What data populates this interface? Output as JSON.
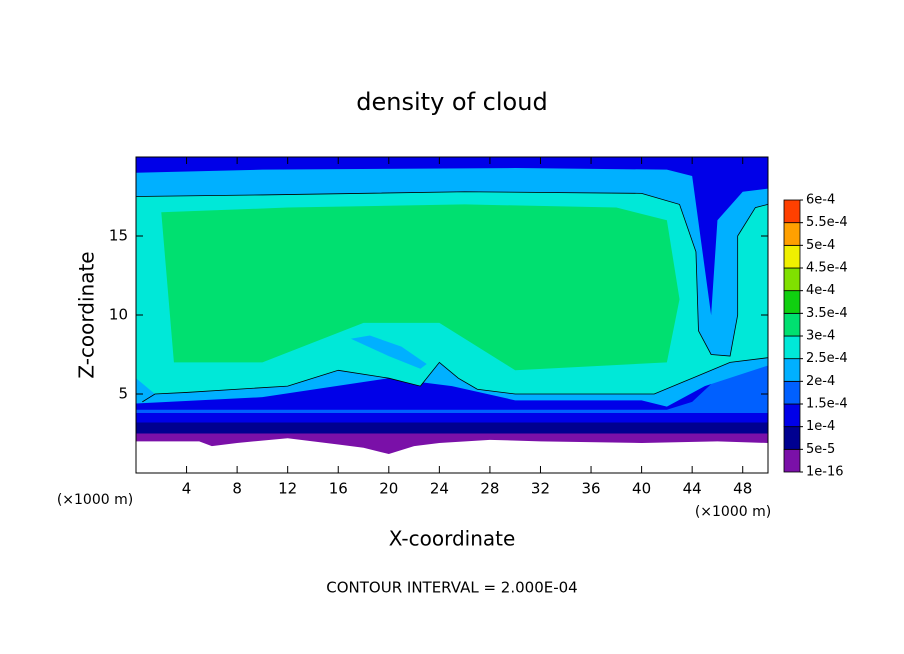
{
  "chart_data": {
    "type": "contour",
    "title": "density of cloud",
    "xlabel": "X-coordinate",
    "ylabel": "Z-coordinate",
    "xunit": "(×1000 m)",
    "yunit": "(×1000 m)",
    "footnote": "CONTOUR INTERVAL = 2.000E-04",
    "xlim": [
      0,
      50
    ],
    "ylim": [
      0,
      20
    ],
    "xticks": [
      4,
      8,
      12,
      16,
      20,
      24,
      28,
      32,
      36,
      40,
      44,
      48
    ],
    "yticks": [
      5,
      10,
      15
    ],
    "colorbar": {
      "levels": [
        {
          "value": 1e-16,
          "label": "1e-16"
        },
        {
          "value": 5e-05,
          "label": "5e-5"
        },
        {
          "value": 0.0001,
          "label": "1e-4"
        },
        {
          "value": 0.00015,
          "label": "1.5e-4"
        },
        {
          "value": 0.0002,
          "label": "2e-4"
        },
        {
          "value": 0.00025,
          "label": "2.5e-4"
        },
        {
          "value": 0.0003,
          "label": "3e-4"
        },
        {
          "value": 0.00035,
          "label": "3.5e-4"
        },
        {
          "value": 0.0004,
          "label": "4e-4"
        },
        {
          "value": 0.00045,
          "label": "4.5e-4"
        },
        {
          "value": 0.0005,
          "label": "5e-4"
        },
        {
          "value": 0.00055,
          "label": "5.5e-4"
        },
        {
          "value": 0.0006,
          "label": "6e-4"
        }
      ],
      "colors": [
        "#7a10a8",
        "#000090",
        "#0000e8",
        "#0060ff",
        "#00b0ff",
        "#00e8d8",
        "#00e070",
        "#10d010",
        "#80e000",
        "#f0f000",
        "#ffa000",
        "#ff4000",
        "#ff9090"
      ]
    },
    "field_regions": [
      {
        "color": "#7a10a8",
        "x": [
          0,
          5,
          6,
          8,
          12,
          16,
          18,
          20,
          22,
          24,
          28,
          32,
          40,
          46,
          50,
          50,
          0
        ],
        "z": [
          2.0,
          2.0,
          1.7,
          1.9,
          2.2,
          1.8,
          1.6,
          1.2,
          1.7,
          1.9,
          2.1,
          2.0,
          1.9,
          2.0,
          1.9,
          3.0,
          3.0
        ]
      },
      {
        "color": "#000090",
        "x": [
          0,
          50,
          50,
          0
        ],
        "z": [
          2.5,
          2.5,
          4.2,
          4.2
        ]
      },
      {
        "color": "#0000e8",
        "x": [
          0,
          50,
          50,
          44,
          42,
          40,
          0
        ],
        "z": [
          3.2,
          3.2,
          20,
          20,
          20,
          20,
          20
        ]
      },
      {
        "color": "#0060ff",
        "x": [
          0,
          42,
          44,
          46,
          46.5,
          47.5,
          50,
          50,
          0
        ],
        "z": [
          4.0,
          4.0,
          4.5,
          6.0,
          10,
          16.5,
          17.6,
          3.8,
          3.8
        ]
      },
      {
        "color": "#00b0ff",
        "x": [
          0,
          10,
          20,
          25,
          30,
          40,
          42,
          45,
          50,
          50,
          48,
          46,
          45.5,
          44,
          42,
          30,
          10,
          0
        ],
        "z": [
          4.4,
          4.8,
          6.0,
          5.5,
          4.6,
          4.6,
          4.2,
          5.5,
          6.8,
          18.0,
          17.8,
          16.0,
          10.0,
          18.8,
          19.2,
          19.3,
          19.2,
          19.0
        ]
      },
      {
        "color": "#00e8d8",
        "x": [
          0,
          10,
          26,
          40,
          43,
          44.3,
          44.5,
          45.5,
          47,
          47.6,
          47.6,
          49,
          50,
          50,
          47,
          44,
          41,
          37,
          30,
          27,
          25.5,
          24,
          22.5,
          20,
          16,
          12,
          4,
          1.5,
          0
        ],
        "z": [
          17.5,
          17.6,
          17.8,
          17.7,
          17.0,
          14.0,
          9.0,
          7.5,
          7.4,
          10.0,
          15.0,
          16.8,
          17.0,
          7.3,
          7.0,
          6.0,
          5.0,
          5.0,
          5.0,
          5.3,
          6.0,
          7.0,
          5.5,
          6.0,
          6.5,
          5.5,
          5.1,
          5.0,
          6.0
        ]
      },
      {
        "color": "#00e070",
        "x": [
          2,
          12,
          26,
          38,
          42,
          43,
          42,
          30,
          24,
          18,
          10,
          3
        ],
        "z": [
          16.5,
          16.8,
          17.0,
          16.8,
          16.0,
          11.0,
          7.0,
          6.5,
          9.5,
          9.5,
          7.0,
          7.0
        ]
      },
      {
        "color": "#00b0ff",
        "x": [
          17,
          18.5,
          21,
          23,
          22.5,
          20
        ],
        "z": [
          8.5,
          8.7,
          8.0,
          6.9,
          6.6,
          7.4
        ]
      }
    ],
    "contour_line": {
      "x": [
        0,
        10,
        26,
        40,
        43,
        44.3,
        44.5,
        45.5,
        47,
        47.6,
        47.6,
        49,
        50
      ],
      "z": [
        17.5,
        17.6,
        17.8,
        17.7,
        17.0,
        14.0,
        9.0,
        7.5,
        7.4,
        10.0,
        15.0,
        16.8,
        17.0
      ]
    },
    "contour_line_2": {
      "x": [
        50,
        47,
        44,
        41,
        37,
        30,
        27,
        25.5,
        24,
        22.5,
        20,
        16,
        12,
        4,
        1.5,
        0.5
      ],
      "z": [
        7.3,
        7.0,
        6.0,
        5.0,
        5.0,
        5.0,
        5.3,
        6.0,
        7.0,
        5.5,
        6.0,
        6.5,
        5.5,
        5.1,
        5.0,
        4.5
      ]
    }
  }
}
